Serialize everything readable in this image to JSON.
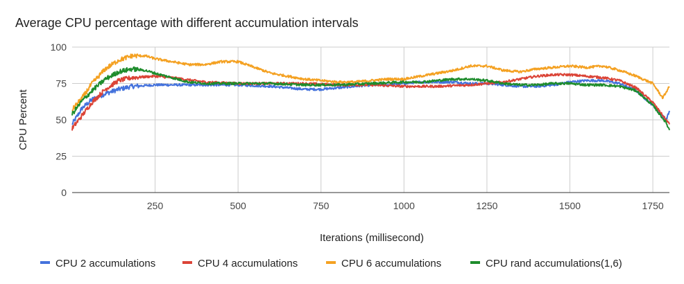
{
  "chart_data": {
    "type": "line",
    "title": "Average CPU percentage with different accumulation intervals",
    "xlabel": "Iterations (millisecond)",
    "ylabel": "CPU Percent",
    "xlim": [
      0,
      1800
    ],
    "ylim": [
      0,
      100
    ],
    "xticks": [
      250,
      500,
      750,
      1000,
      1250,
      1500,
      1750
    ],
    "yticks": [
      0,
      25,
      50,
      75,
      100
    ],
    "grid": true,
    "legend_position": "bottom",
    "series": [
      {
        "name": "CPU 2 accumulations",
        "color": "#4472dc",
        "x": [
          0,
          30,
          60,
          100,
          140,
          180,
          250,
          300,
          350,
          400,
          500,
          600,
          650,
          700,
          750,
          800,
          850,
          900,
          950,
          1000,
          1050,
          1100,
          1150,
          1200,
          1250,
          1300,
          1350,
          1400,
          1450,
          1500,
          1550,
          1600,
          1650,
          1700,
          1750,
          1790,
          1800
        ],
        "values": [
          47,
          58,
          64,
          68,
          71,
          73,
          74,
          74,
          74,
          74,
          74,
          73,
          72,
          71,
          71,
          72,
          73,
          74,
          74,
          75,
          76,
          76,
          76,
          75,
          75,
          74,
          73,
          73,
          74,
          76,
          77,
          77,
          75,
          70,
          60,
          50,
          56
        ]
      },
      {
        "name": "CPU 4 accumulations",
        "color": "#db4437",
        "x": [
          0,
          30,
          60,
          100,
          140,
          180,
          250,
          300,
          400,
          500,
          600,
          700,
          800,
          900,
          1000,
          1100,
          1200,
          1300,
          1350,
          1400,
          1450,
          1500,
          1550,
          1600,
          1650,
          1700,
          1750,
          1790,
          1800
        ],
        "values": [
          44,
          53,
          62,
          71,
          77,
          79,
          80,
          79,
          76,
          75,
          75,
          75,
          74,
          74,
          73,
          73,
          74,
          76,
          78,
          80,
          81,
          81,
          80,
          79,
          77,
          72,
          62,
          50,
          47
        ]
      },
      {
        "name": "CPU 6 accumulations",
        "color": "#f4a122",
        "x": [
          0,
          30,
          60,
          100,
          140,
          180,
          220,
          250,
          300,
          350,
          400,
          450,
          500,
          550,
          600,
          650,
          700,
          750,
          800,
          850,
          900,
          950,
          1000,
          1050,
          1100,
          1150,
          1200,
          1250,
          1300,
          1350,
          1400,
          1450,
          1500,
          1550,
          1600,
          1650,
          1700,
          1750,
          1780,
          1800
        ],
        "values": [
          57,
          65,
          75,
          85,
          91,
          94,
          94,
          92,
          90,
          88,
          88,
          90,
          90,
          86,
          82,
          80,
          78,
          77,
          76,
          76,
          77,
          78,
          78,
          80,
          82,
          84,
          87,
          87,
          84,
          83,
          85,
          86,
          87,
          86,
          87,
          84,
          80,
          75,
          65,
          73
        ]
      },
      {
        "name": "CPU rand accumulations(1,6)",
        "color": "#1e8c2c",
        "x": [
          0,
          30,
          60,
          100,
          140,
          180,
          220,
          250,
          300,
          350,
          400,
          500,
          600,
          700,
          800,
          900,
          1000,
          1050,
          1100,
          1150,
          1200,
          1250,
          1300,
          1350,
          1400,
          1450,
          1500,
          1550,
          1600,
          1650,
          1700,
          1750,
          1790,
          1800
        ],
        "values": [
          54,
          63,
          70,
          78,
          83,
          85,
          84,
          82,
          79,
          76,
          75,
          75,
          75,
          74,
          74,
          75,
          76,
          76,
          77,
          78,
          78,
          77,
          75,
          74,
          74,
          75,
          75,
          74,
          74,
          73,
          70,
          60,
          48,
          43
        ]
      }
    ]
  }
}
